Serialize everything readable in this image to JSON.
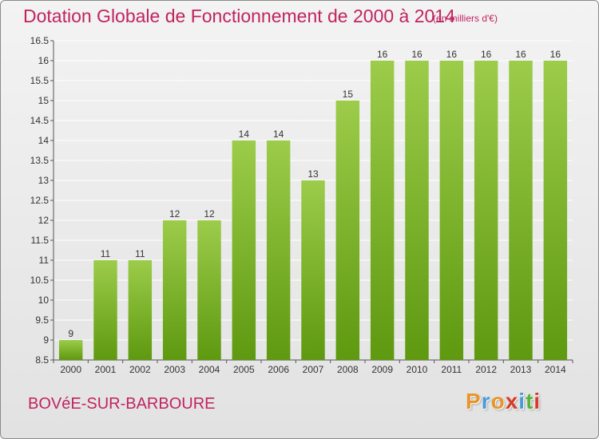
{
  "chart_data": {
    "type": "bar",
    "title": "Dotation Globale de Fonctionnement de 2000 à 2014",
    "subtitle": "(en milliers d'€)",
    "categories": [
      "2000",
      "2001",
      "2002",
      "2003",
      "2004",
      "2005",
      "2006",
      "2007",
      "2008",
      "2009",
      "2010",
      "2011",
      "2012",
      "2013",
      "2014"
    ],
    "values": [
      9,
      11,
      11,
      12,
      12,
      14,
      14,
      13,
      15,
      16,
      16,
      16,
      16,
      16,
      16
    ],
    "data_labels": [
      "9",
      "11",
      "11",
      "12",
      "12",
      "14",
      "14",
      "13",
      "15",
      "16",
      "16",
      "16",
      "16",
      "16",
      "16"
    ],
    "yticks": [
      "8.5",
      "9",
      "9.5",
      "10",
      "10.5",
      "11",
      "11.5",
      "12",
      "12.5",
      "13",
      "13.5",
      "14",
      "14.5",
      "15",
      "15.5",
      "16",
      "16.5"
    ],
    "ylim": [
      8.5,
      16.5
    ],
    "xlabel": "",
    "ylabel": "",
    "grid": true,
    "legend": "none",
    "colors": {
      "bar_top": "#9ccc4a",
      "bar_bottom": "#5e9910",
      "grid": "#ffffff",
      "title": "#c0245f"
    }
  },
  "footer": {
    "town": "BOVéE-SUR-BARBOURE",
    "logo": [
      "P",
      "r",
      "o",
      "x",
      "i",
      "t",
      "i"
    ],
    "logo_colors": [
      "#e8962c",
      "#4a9ad8",
      "#e8962c",
      "#d63c2a",
      "#4a9ad8",
      "#58b33a",
      "#d63c2a"
    ]
  }
}
